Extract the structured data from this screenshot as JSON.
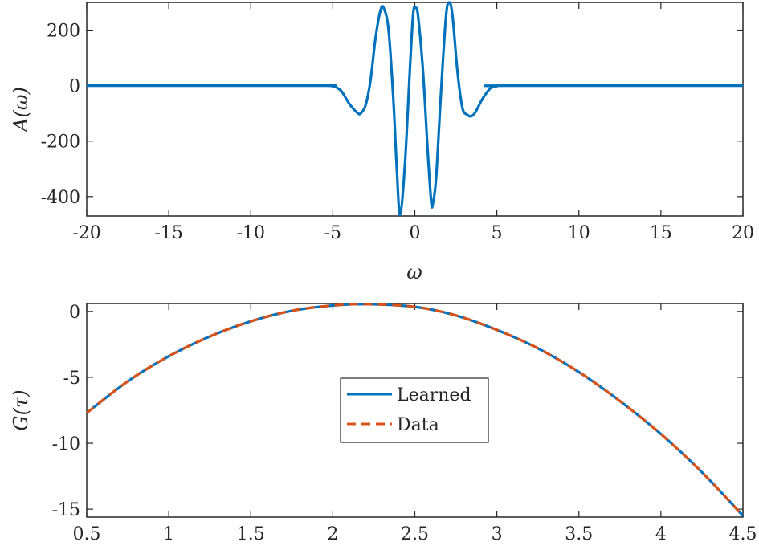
{
  "chart_data": [
    {
      "type": "line",
      "title": "",
      "xlabel": "ω",
      "ylabel": "A(ω)",
      "xlim": [
        -20,
        20
      ],
      "ylim": [
        -470,
        300
      ],
      "xticks": [
        -20,
        -15,
        -10,
        -5,
        0,
        5,
        10,
        15,
        20
      ],
      "xtick_labels": [
        "-20",
        "-15",
        "-10",
        "-5",
        "0",
        "5",
        "10",
        "15",
        "20"
      ],
      "yticks": [
        200,
        0,
        -200,
        -400
      ],
      "ytick_labels": [
        "200",
        "0",
        "-200",
        "-400"
      ],
      "grid": false,
      "colors": {
        "line": "#0072BD",
        "axes": "#262626"
      },
      "series": [
        {
          "x": [
            -20,
            -6,
            -5.5,
            -5,
            -4.5,
            -4,
            -3.5,
            -3.3,
            -3,
            -2.7,
            -2.4,
            -2.1,
            -1.9,
            -1.6,
            -1.3,
            -1.1,
            -0.9,
            -0.6,
            -0.3,
            -0.1,
            0.05,
            0.2,
            0.5,
            0.8,
            1.0,
            1.1,
            1.3,
            1.6,
            1.9,
            2.1,
            2.3,
            2.6,
            2.9,
            3.2,
            3.45,
            3.7,
            4.1,
            4.6,
            5.0,
            5.5,
            20
          ],
          "y": [
            0,
            0,
            0,
            -2,
            -18,
            -65,
            -98,
            -100,
            -70,
            20,
            170,
            270,
            280,
            200,
            -60,
            -300,
            -465,
            -280,
            60,
            260,
            280,
            250,
            50,
            -250,
            -420,
            -425,
            -330,
            -20,
            250,
            300,
            250,
            50,
            -80,
            -105,
            -110,
            -95,
            -50,
            -10,
            -2,
            0,
            0
          ]
        }
      ]
    },
    {
      "type": "line",
      "title": "",
      "xlabel": "",
      "ylabel": "G(τ)",
      "xlim": [
        0.5,
        4.5
      ],
      "ylim": [
        -15.6,
        0.6
      ],
      "xticks": [
        0.5,
        1,
        1.5,
        2,
        2.5,
        3,
        3.5,
        4,
        4.5
      ],
      "xtick_labels": [
        "0.5",
        "1",
        "1.5",
        "2",
        "2.5",
        "3",
        "3.5",
        "4",
        "4.5"
      ],
      "yticks": [
        0,
        -5,
        -10,
        -15
      ],
      "ytick_labels": [
        "0",
        "-5",
        "-10",
        "-15"
      ],
      "grid": false,
      "legend": {
        "placement": "center",
        "entries": [
          "Learned",
          "Data"
        ]
      },
      "colors": {
        "learned": "#0072BD",
        "data": "#D95319",
        "axes": "#262626"
      },
      "series": [
        {
          "name": "Learned",
          "style": "solid",
          "x": [
            0.5,
            0.75,
            1.0,
            1.25,
            1.5,
            1.75,
            2.0,
            2.2,
            2.5,
            2.75,
            3.0,
            3.25,
            3.5,
            3.75,
            4.0,
            4.25,
            4.5
          ],
          "y": [
            -7.7,
            -5.3,
            -3.4,
            -1.9,
            -0.75,
            0.05,
            0.45,
            0.55,
            0.35,
            -0.3,
            -1.4,
            -2.8,
            -4.6,
            -6.8,
            -9.3,
            -12.2,
            -15.5
          ]
        },
        {
          "name": "Data",
          "style": "dashed",
          "x": [
            0.5,
            0.75,
            1.0,
            1.25,
            1.5,
            1.75,
            2.0,
            2.2,
            2.5,
            2.75,
            3.0,
            3.25,
            3.5,
            3.75,
            4.0,
            4.25,
            4.5
          ],
          "y": [
            -7.7,
            -5.3,
            -3.4,
            -1.9,
            -0.75,
            0.05,
            0.45,
            0.55,
            0.35,
            -0.3,
            -1.4,
            -2.8,
            -4.6,
            -6.8,
            -9.3,
            -12.2,
            -15.5
          ]
        }
      ]
    }
  ]
}
